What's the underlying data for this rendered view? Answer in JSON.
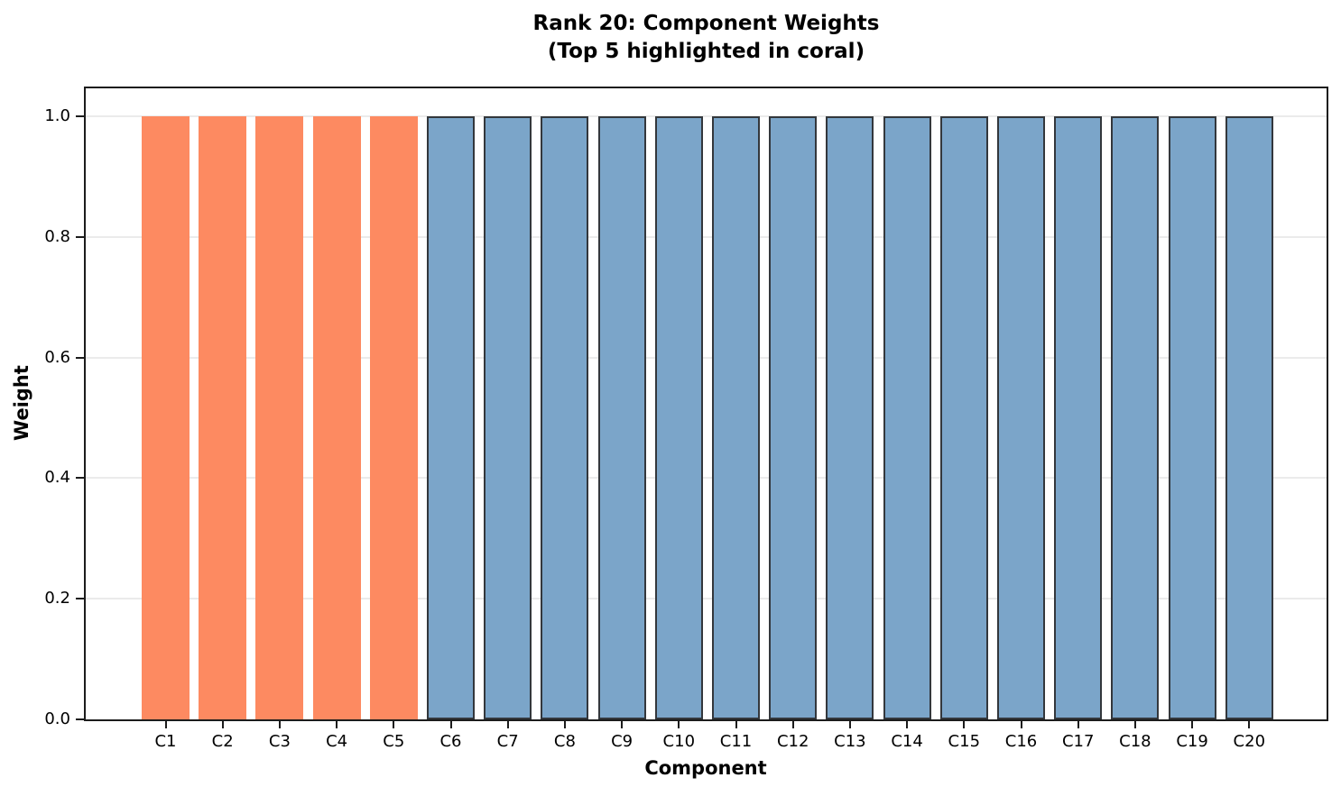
{
  "figure": {
    "title_line1": "Rank 20: Component Weights",
    "title_line2": "(Top 5 highlighted in coral)",
    "xlabel": "Component",
    "ylabel": "Weight"
  },
  "chart_data": {
    "type": "bar",
    "title": "Rank 20: Component Weights (Top 5 highlighted in coral)",
    "xlabel": "Component",
    "ylabel": "Weight",
    "categories": [
      "C1",
      "C2",
      "C3",
      "C4",
      "C5",
      "C6",
      "C7",
      "C8",
      "C9",
      "C10",
      "C11",
      "C12",
      "C13",
      "C14",
      "C15",
      "C16",
      "C17",
      "C18",
      "C19",
      "C20"
    ],
    "values": [
      1.0,
      1.0,
      1.0,
      1.0,
      1.0,
      1.0,
      1.0,
      1.0,
      1.0,
      1.0,
      1.0,
      1.0,
      1.0,
      1.0,
      1.0,
      1.0,
      1.0,
      1.0,
      1.0,
      1.0
    ],
    "highlight_count": 5,
    "y_ticks": [
      {
        "label": "0.0",
        "value": 0.0
      },
      {
        "label": "0.2",
        "value": 0.2
      },
      {
        "label": "0.4",
        "value": 0.4
      },
      {
        "label": "0.6",
        "value": 0.6
      },
      {
        "label": "0.8",
        "value": 0.8
      },
      {
        "label": "1.0",
        "value": 1.0
      }
    ],
    "ylim": [
      0.0,
      1.048
    ],
    "grid": "horizontal",
    "legend": null,
    "colors": {
      "highlight_fill": "#fd8a61",
      "normal_fill": "#7ba5c9",
      "normal_edge": "#33373c",
      "grid": "#ebebeb",
      "spine": "#1c1c1c",
      "text": "#000000"
    }
  }
}
